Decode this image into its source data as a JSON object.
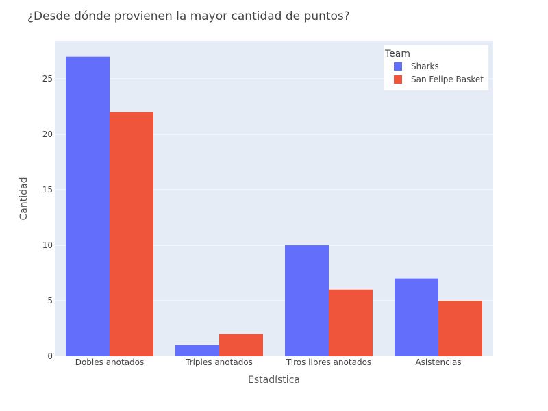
{
  "chart_data": {
    "type": "bar",
    "title": "¿Desde dónde provienen la mayor cantidad de puntos?",
    "xlabel": "Estadística",
    "ylabel": "Cantidad",
    "categories": [
      "Dobles anotados",
      "Triples anotados",
      "Tiros libres anotados",
      "Asistencias"
    ],
    "series": [
      {
        "name": "Sharks",
        "color": "#636efa",
        "values": [
          27,
          1,
          10,
          7
        ]
      },
      {
        "name": "San Felipe Basket",
        "color": "#ef553b",
        "values": [
          22,
          2,
          6,
          5
        ]
      }
    ],
    "ylim": [
      0,
      28.4
    ],
    "yticks": [
      0,
      5,
      10,
      15,
      20,
      25
    ],
    "legend": {
      "title": "Team",
      "position": "top-right"
    },
    "grid": true,
    "plot_background": "#e5ecf6"
  }
}
